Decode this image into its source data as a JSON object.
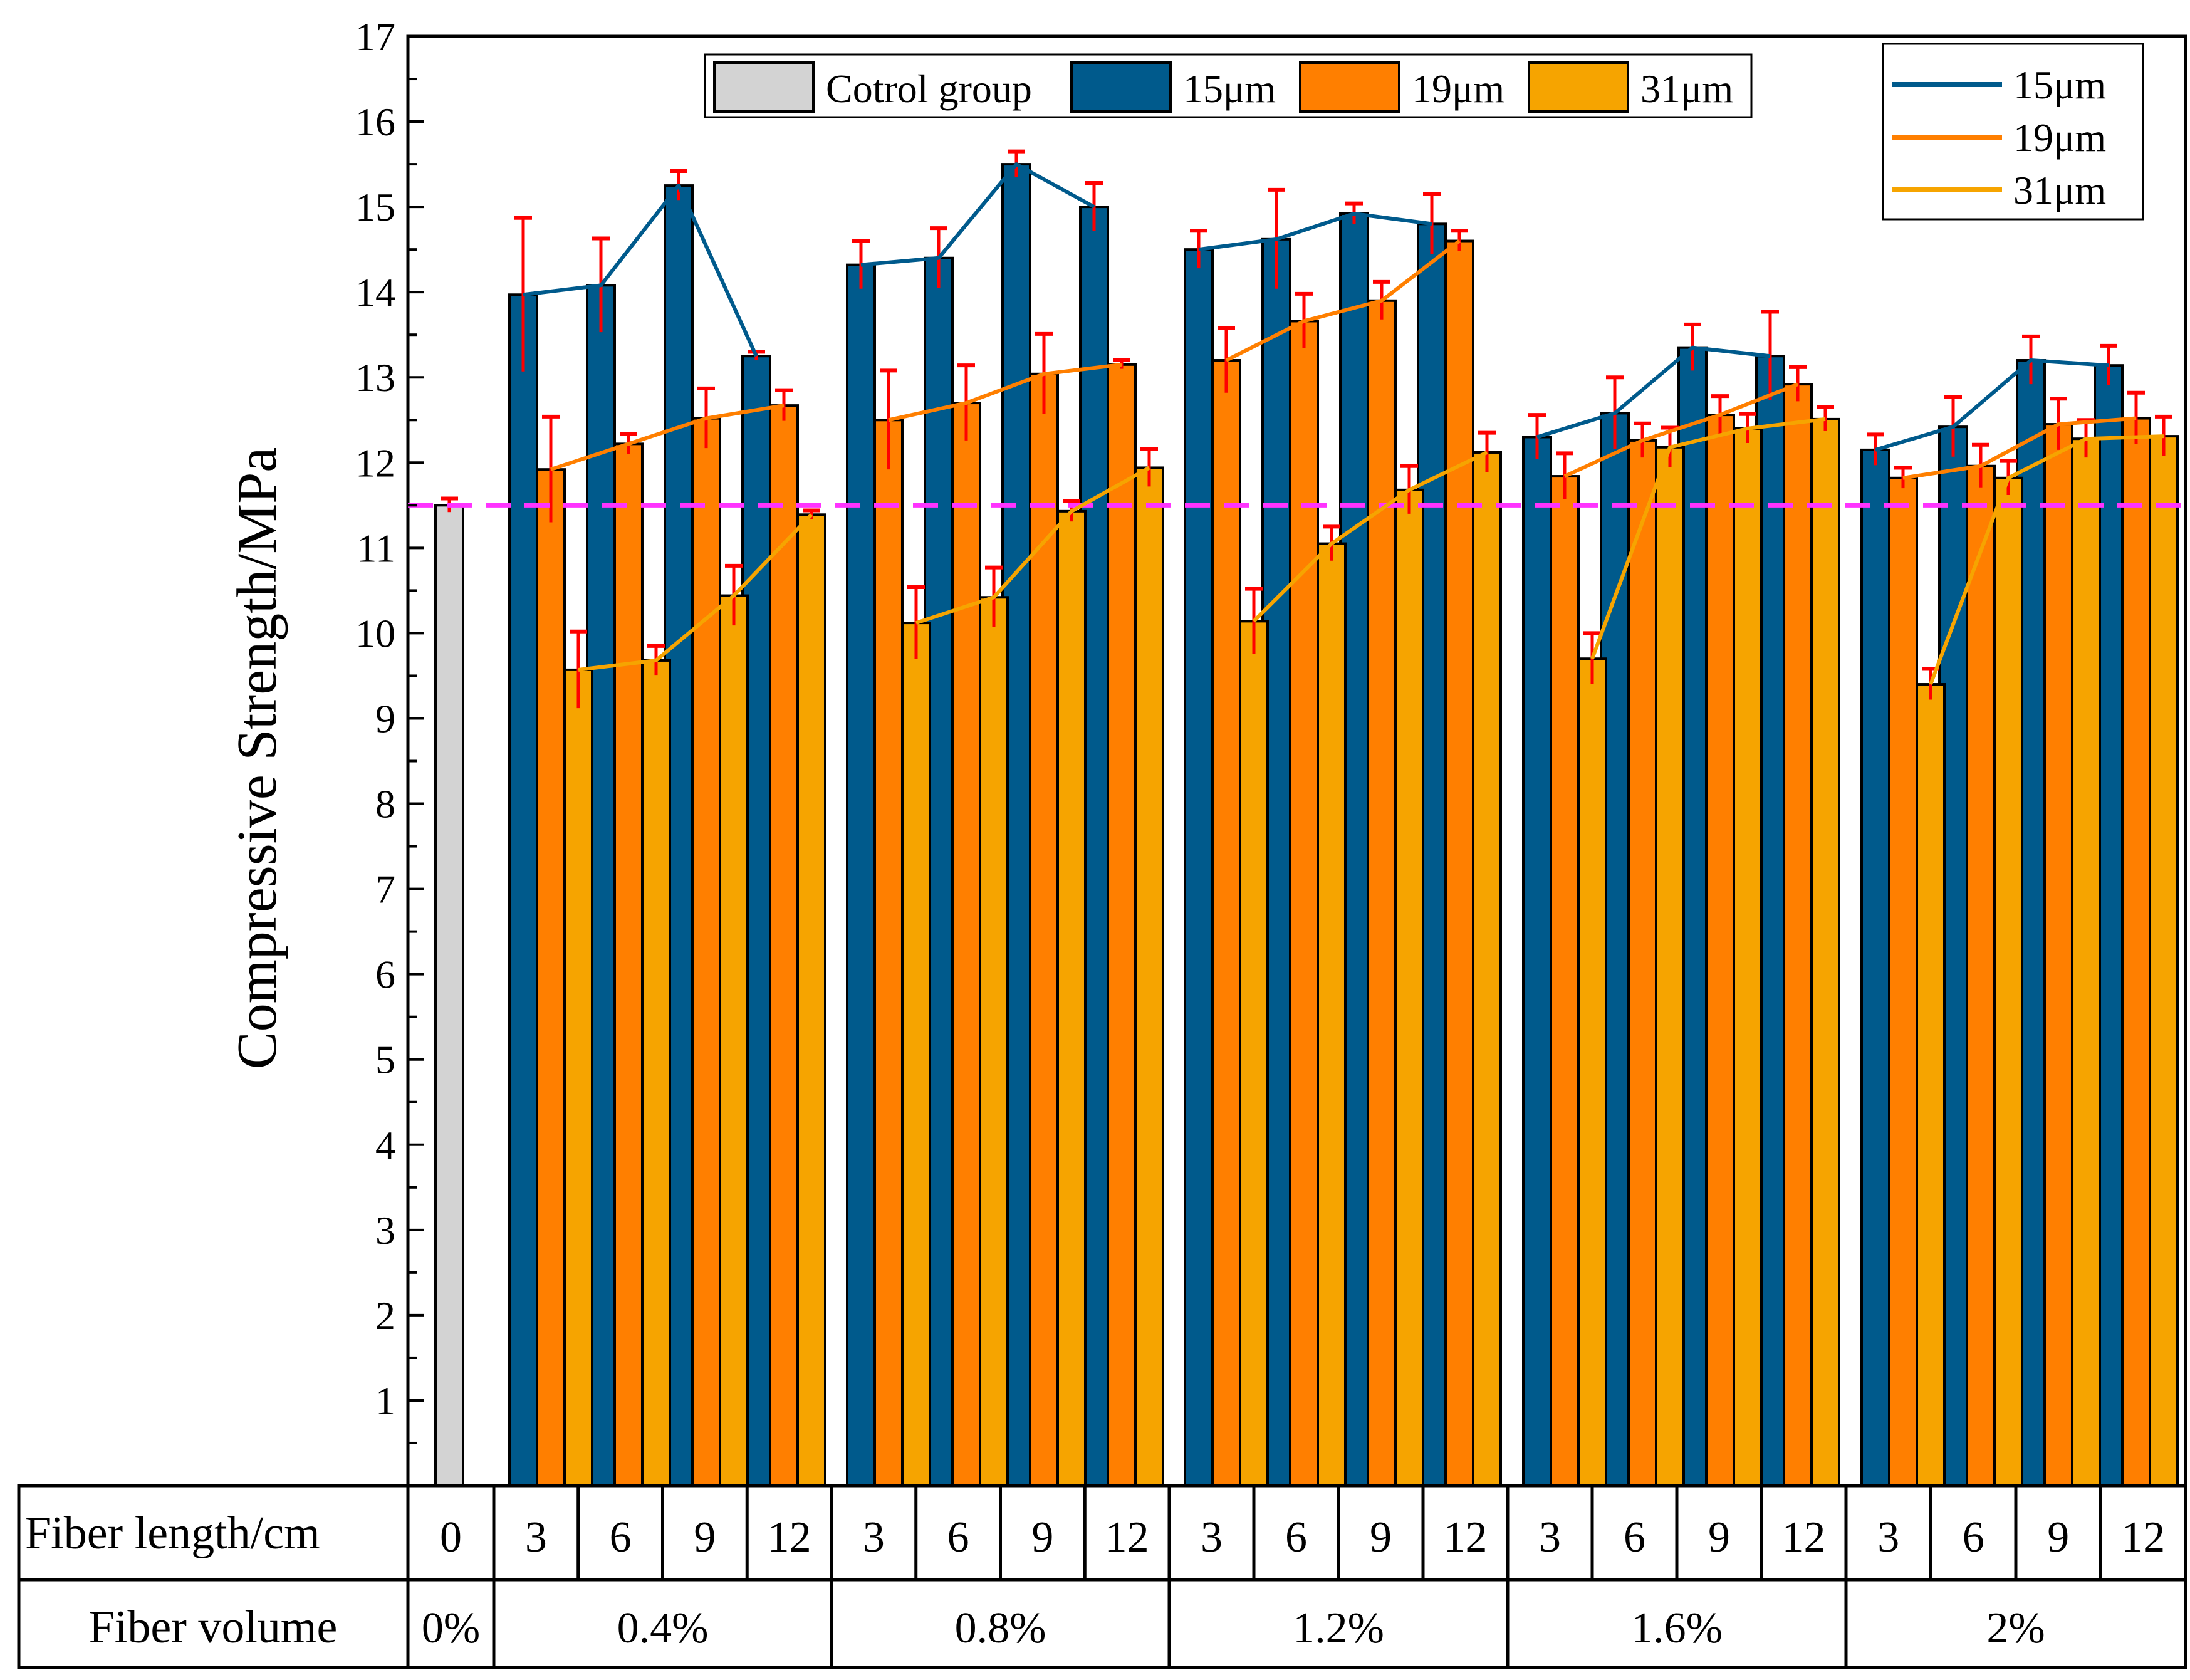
{
  "chart_data": {
    "type": "bar",
    "title": "",
    "ylabel": "Compressive Strength/MPa",
    "ylim": [
      0,
      17
    ],
    "yticks": [
      1,
      2,
      3,
      4,
      5,
      6,
      7,
      8,
      9,
      10,
      11,
      12,
      13,
      14,
      15,
      16,
      17
    ],
    "grid": false,
    "reference_line": {
      "value": 11.5,
      "color": "#ff33ff",
      "style": "dashed"
    },
    "control": {
      "name": "Cotrol group",
      "value": 11.5,
      "error": 0.08,
      "color": "#d3d3d3"
    },
    "series": [
      {
        "name": "15μm",
        "line_name": "15μm",
        "color": "#005a8c",
        "values": [
          [
            13.97,
            14.08,
            15.25,
            13.25
          ],
          [
            14.32,
            14.4,
            15.5,
            15.0
          ],
          [
            14.5,
            14.62,
            14.92,
            14.8
          ],
          [
            12.3,
            12.58,
            13.35,
            13.25
          ],
          [
            12.15,
            12.42,
            13.2,
            13.14
          ]
        ],
        "errors": [
          [
            0.9,
            0.55,
            0.17,
            0.05
          ],
          [
            0.28,
            0.35,
            0.15,
            0.28
          ],
          [
            0.22,
            0.58,
            0.12,
            0.35
          ],
          [
            0.26,
            0.42,
            0.27,
            0.52
          ],
          [
            0.18,
            0.35,
            0.28,
            0.23
          ]
        ]
      },
      {
        "name": "19μm",
        "line_name": "19μm",
        "color": "#ff7f00",
        "values": [
          [
            11.92,
            12.22,
            12.52,
            12.67
          ],
          [
            12.5,
            12.7,
            13.04,
            13.15
          ],
          [
            13.2,
            13.66,
            13.9,
            14.6
          ],
          [
            11.84,
            12.26,
            12.56,
            12.92
          ],
          [
            11.82,
            11.96,
            12.45,
            12.52
          ]
        ],
        "errors": [
          [
            0.62,
            0.12,
            0.35,
            0.18
          ],
          [
            0.58,
            0.44,
            0.47,
            0.05
          ],
          [
            0.38,
            0.32,
            0.22,
            0.12
          ],
          [
            0.27,
            0.2,
            0.22,
            0.2
          ],
          [
            0.12,
            0.25,
            0.3,
            0.3
          ]
        ]
      },
      {
        "name": "31μm",
        "line_name": "31μm",
        "color": "#f6a400",
        "values": [
          [
            9.57,
            9.68,
            10.44,
            11.39
          ],
          [
            10.12,
            10.42,
            11.43,
            11.94
          ],
          [
            10.14,
            11.05,
            11.68,
            12.12
          ],
          [
            9.7,
            12.18,
            12.4,
            12.51
          ],
          [
            9.4,
            11.82,
            12.28,
            12.31
          ]
        ],
        "errors": [
          [
            0.45,
            0.17,
            0.35,
            0.05
          ],
          [
            0.42,
            0.35,
            0.12,
            0.22
          ],
          [
            0.38,
            0.2,
            0.28,
            0.23
          ],
          [
            0.3,
            0.23,
            0.17,
            0.14
          ],
          [
            0.18,
            0.2,
            0.22,
            0.23
          ]
        ]
      }
    ],
    "lengths": [
      "3",
      "6",
      "9",
      "12"
    ],
    "volumes": [
      "0.4%",
      "0.8%",
      "1.2%",
      "1.6%",
      "2%"
    ],
    "control_length": "0",
    "control_volume": "0%",
    "bar_legend_position": "top-center",
    "line_legend_position": "top-right"
  },
  "table": {
    "row1_label": "Fiber length/cm",
    "row2_label": "Fiber volume"
  }
}
